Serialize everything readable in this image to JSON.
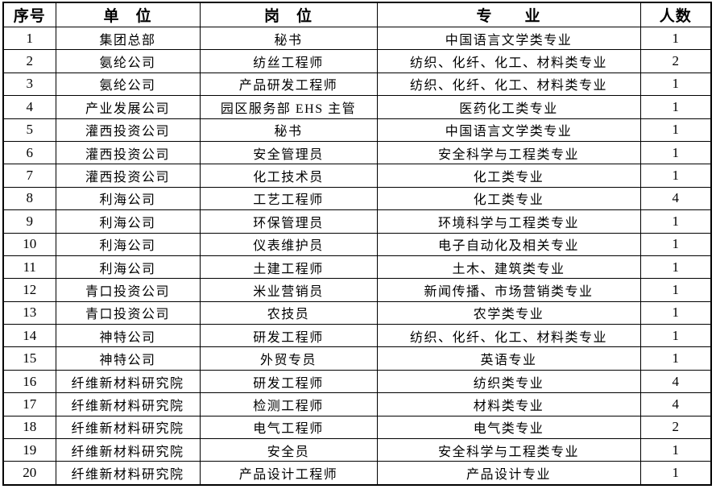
{
  "table": {
    "headers": [
      "序号",
      "单　位",
      "岗　位",
      "专　　业",
      "人数"
    ],
    "column_names": [
      "serial",
      "unit",
      "position",
      "major",
      "count"
    ],
    "rows": [
      [
        "1",
        "集团总部",
        "秘书",
        "中国语言文学类专业",
        "1"
      ],
      [
        "2",
        "氨纶公司",
        "纺丝工程师",
        "纺织、化纤、化工、材料类专业",
        "2"
      ],
      [
        "3",
        "氨纶公司",
        "产品研发工程师",
        "纺织、化纤、化工、材料类专业",
        "1"
      ],
      [
        "4",
        "产业发展公司",
        "园区服务部 EHS 主管",
        "医药化工类专业",
        "1"
      ],
      [
        "5",
        "灌西投资公司",
        "秘书",
        "中国语言文学类专业",
        "1"
      ],
      [
        "6",
        "灌西投资公司",
        "安全管理员",
        "安全科学与工程类专业",
        "1"
      ],
      [
        "7",
        "灌西投资公司",
        "化工技术员",
        "化工类专业",
        "1"
      ],
      [
        "8",
        "利海公司",
        "工艺工程师",
        "化工类专业",
        "4"
      ],
      [
        "9",
        "利海公司",
        "环保管理员",
        "环境科学与工程类专业",
        "1"
      ],
      [
        "10",
        "利海公司",
        "仪表维护员",
        "电子自动化及相关专业",
        "1"
      ],
      [
        "11",
        "利海公司",
        "土建工程师",
        "土木、建筑类专业",
        "1"
      ],
      [
        "12",
        "青口投资公司",
        "米业营销员",
        "新闻传播、市场营销类专业",
        "1"
      ],
      [
        "13",
        "青口投资公司",
        "农技员",
        "农学类专业",
        "1"
      ],
      [
        "14",
        "神特公司",
        "研发工程师",
        "纺织、化纤、化工、材料类专业",
        "1"
      ],
      [
        "15",
        "神特公司",
        "外贸专员",
        "英语专业",
        "1"
      ],
      [
        "16",
        "纤维新材料研究院",
        "研发工程师",
        "纺织类专业",
        "4"
      ],
      [
        "17",
        "纤维新材料研究院",
        "检测工程师",
        "材料类专业",
        "4"
      ],
      [
        "18",
        "纤维新材料研究院",
        "电气工程师",
        "电气类专业",
        "2"
      ],
      [
        "19",
        "纤维新材料研究院",
        "安全员",
        "安全科学与工程类专业",
        "1"
      ],
      [
        "20",
        "纤维新材料研究院",
        "产品设计工程师",
        "产品设计专业",
        "1"
      ]
    ],
    "border_color": "#000000",
    "text_color": "#000000",
    "background_color": "#ffffff"
  }
}
